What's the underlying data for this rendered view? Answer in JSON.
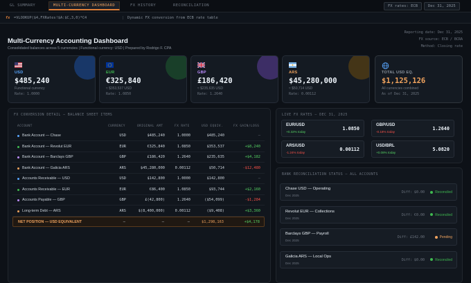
{
  "tabs": [
    {
      "label": "GL SUMMARY"
    },
    {
      "label": "MULTI-CURRENCY DASHBOARD"
    },
    {
      "label": "FX HISTORY"
    },
    {
      "label": "RECONCILIATION"
    }
  ],
  "fx_pill": "FX rates: ECB",
  "date_pill": "Dec 31, 2025",
  "formula_bar": {
    "fx_label": "fx",
    "formula": "=VLOOKUP($4,FXRates!$A:$C,3,0)*C4",
    "separator": "|",
    "description": "Dynamic FX conversion from ECB rate table"
  },
  "header": {
    "title": "Multi-Currency Accounting Dashboard",
    "subtitle": "Consolidated balances across 5 currencies  |  Functional currency: USD  |  Prepared by Rodrigo F. CPA",
    "meta": [
      "Reporting date: Dec 31, 2025",
      "FX source: ECB / BCRA",
      "Method: Closing rate"
    ]
  },
  "cards": [
    {
      "code": "USD",
      "amount": "$485,240",
      "line1": "Functional currency",
      "line2": "Rate: 1.0000",
      "color": "#58a6ff"
    },
    {
      "code": "EUR",
      "amount": "€325,840",
      "line1": "≈ $353,537 USD",
      "line2": "Rate: 1.0850",
      "color": "#3fb950"
    },
    {
      "code": "GBP",
      "amount": "£186,420",
      "line1": "≈ $235,635 USD",
      "line2": "Rate: 1.2640",
      "color": "#bc8cff"
    },
    {
      "code": "ARS",
      "amount": "$45,280,000",
      "line1": "≈ $50,714 USD",
      "line2": "Rate: 0.00112",
      "color": "#f0a35e"
    },
    {
      "code": "TOTAL USD EQ.",
      "amount": "$1,125,126",
      "line1": "All currencies combined",
      "line2": "As of Dec 31, 2025",
      "color": "#58a6ff"
    }
  ],
  "balance_sheet": {
    "title": "FX CONVERSION DETAIL — BALANCE SHEET ITEMS",
    "columns": [
      "ACCOUNT",
      "CURRENCY",
      "ORIGINAL AMT",
      "FX RATE",
      "USD EQUIV.",
      "FX GAIN/LOSS"
    ],
    "rows": [
      {
        "account": "Bank Account — Chase",
        "currency": "USD",
        "original": "$485,240",
        "rate": "1.0000",
        "usd": "$485,240",
        "gain": "—",
        "dot": "#58a6ff",
        "gain_class": "dim"
      },
      {
        "account": "Bank Account — Revolut EUR",
        "currency": "EUR",
        "original": "€325,840",
        "rate": "1.0850",
        "usd": "$353,537",
        "gain": "+$8,240",
        "dot": "#3fb950",
        "gain_class": "pos"
      },
      {
        "account": "Bank Account — Barclays GBP",
        "currency": "GBP",
        "original": "£186,420",
        "rate": "1.2640",
        "usd": "$235,635",
        "gain": "+$4,182",
        "dot": "#bc8cff",
        "gain_class": "pos"
      },
      {
        "account": "Bank Account — Galicia ARS",
        "currency": "ARS",
        "original": "$45,280,000",
        "rate": "0.00112",
        "usd": "$50,714",
        "gain": "-$12,480",
        "dot": "#f0a35e",
        "gain_class": "neg"
      },
      {
        "account": "Accounts Receivable — USD",
        "currency": "USD",
        "original": "$142,800",
        "rate": "1.0000",
        "usd": "$142,800",
        "gain": "—",
        "dot": "#58a6ff",
        "gain_class": "dim"
      },
      {
        "account": "Accounts Receivable — EUR",
        "currency": "EUR",
        "original": "€86,400",
        "rate": "1.0850",
        "usd": "$93,744",
        "gain": "+$2,160",
        "dot": "#3fb950",
        "gain_class": "pos"
      },
      {
        "account": "Accounts Payable — GBP",
        "currency": "GBP",
        "original": "£(42,800)",
        "rate": "1.2640",
        "usd": "($54,099)",
        "gain": "-$1,284",
        "dot": "#bc8cff",
        "gain_class": "neg"
      },
      {
        "account": "Long-term Debt — ARS",
        "currency": "ARS",
        "original": "$(8,400,000)",
        "rate": "0.00112",
        "usd": "($9,408)",
        "gain": "+$3,360",
        "dot": "#f0a35e",
        "gain_class": "pos"
      }
    ],
    "net": {
      "account": "NET POSITION — USD EQUIVALENT",
      "currency": "—",
      "original": "—",
      "rate": "—",
      "usd": "$1,298,163",
      "gain": "+$4,178"
    }
  },
  "live_rates": {
    "title": "LIVE FX RATES — DEC 31, 2025",
    "items": [
      {
        "pair": "EUR/USD",
        "change": "+0.32% today",
        "rate": "1.0850",
        "trend": "pos"
      },
      {
        "pair": "GBP/USD",
        "change": "-0.18% today",
        "rate": "1.2640",
        "trend": "neg"
      },
      {
        "pair": "ARS/USD",
        "change": "-1.24% today",
        "rate": "0.00112",
        "trend": "neg"
      },
      {
        "pair": "USD/BRL",
        "change": "+0.08% today",
        "rate": "5.0820",
        "trend": "pos"
      }
    ]
  },
  "reconciliation": {
    "title": "BANK RECONCILIATION STATUS — ALL ACCOUNTS",
    "items": [
      {
        "name": "Chase USD — Operating",
        "date": "Dec 2025",
        "diff": "Diff: $0.00",
        "status": "Reconciled",
        "color": "#3fb950"
      },
      {
        "name": "Revolut EUR — Collections",
        "date": "Dec 2025",
        "diff": "Diff: €0.00",
        "status": "Reconciled",
        "color": "#3fb950"
      },
      {
        "name": "Barclays GBP — Payroll",
        "date": "Dec 2025",
        "diff": "Diff: £142.00",
        "status": "Pending",
        "color": "#f0a35e"
      },
      {
        "name": "Galicia ARS — Local Ops",
        "date": "Dec 2025",
        "diff": "Diff: $0.00",
        "status": "Reconciled",
        "color": "#3fb950"
      }
    ]
  }
}
